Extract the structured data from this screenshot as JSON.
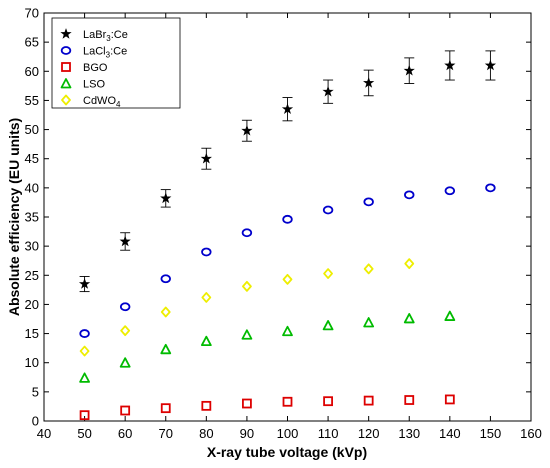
{
  "chart_data": {
    "type": "scatter",
    "xlabel": "X-ray tube voltage (kVp)",
    "ylabel": "Absolute efficiency (EU units)",
    "xlim": [
      40,
      160
    ],
    "ylim": [
      0,
      70
    ],
    "xticks": [
      40,
      50,
      60,
      70,
      80,
      90,
      100,
      110,
      120,
      130,
      140,
      150,
      160
    ],
    "yticks": [
      0,
      5,
      10,
      15,
      20,
      25,
      30,
      35,
      40,
      45,
      50,
      55,
      60,
      65,
      70
    ],
    "grid": false,
    "legend_position": "top-left",
    "series": [
      {
        "name": "LaBr3:Ce",
        "label_main": "LaBr",
        "label_sub": "3",
        "label_rest": ":Ce",
        "marker": "star",
        "color": "#000000",
        "x": [
          50,
          60,
          70,
          80,
          90,
          100,
          110,
          120,
          130,
          140,
          150
        ],
        "y": [
          23.5,
          30.8,
          38.2,
          45.0,
          49.8,
          53.5,
          56.5,
          58.0,
          60.1,
          61.0,
          61.0
        ],
        "err": [
          1.3,
          1.5,
          1.5,
          1.8,
          1.8,
          2.0,
          2.0,
          2.2,
          2.2,
          2.5,
          2.5
        ]
      },
      {
        "name": "LaCl3:Ce",
        "label_main": "LaCl",
        "label_sub": "3",
        "label_rest": ":Ce",
        "marker": "circle",
        "color": "#0000cc",
        "x": [
          50,
          60,
          70,
          80,
          90,
          100,
          110,
          120,
          130,
          140,
          150
        ],
        "y": [
          15.0,
          19.6,
          24.4,
          29.0,
          32.3,
          34.6,
          36.2,
          37.6,
          38.8,
          39.5,
          40.0
        ]
      },
      {
        "name": "BGO",
        "label_main": "BGO",
        "label_sub": "",
        "label_rest": "",
        "marker": "square",
        "color": "#dd0000",
        "x": [
          50,
          60,
          70,
          80,
          90,
          100,
          110,
          120,
          130,
          140
        ],
        "y": [
          1.0,
          1.8,
          2.2,
          2.6,
          3.0,
          3.3,
          3.4,
          3.5,
          3.6,
          3.7
        ]
      },
      {
        "name": "LSO",
        "label_main": "LSO",
        "label_sub": "",
        "label_rest": "",
        "marker": "triangle",
        "color": "#00bb00",
        "x": [
          50,
          60,
          70,
          80,
          90,
          100,
          110,
          120,
          130,
          140
        ],
        "y": [
          7.4,
          10.0,
          12.3,
          13.7,
          14.8,
          15.4,
          16.4,
          16.9,
          17.6,
          18.0
        ]
      },
      {
        "name": "CdWO4",
        "label_main": "CdWO",
        "label_sub": "4",
        "label_rest": "",
        "marker": "diamond",
        "color": "#eeee00",
        "x": [
          50,
          60,
          70,
          80,
          90,
          100,
          110,
          120,
          130
        ],
        "y": [
          12.0,
          15.5,
          18.7,
          21.2,
          23.1,
          24.3,
          25.3,
          26.1,
          27.0
        ]
      }
    ]
  }
}
